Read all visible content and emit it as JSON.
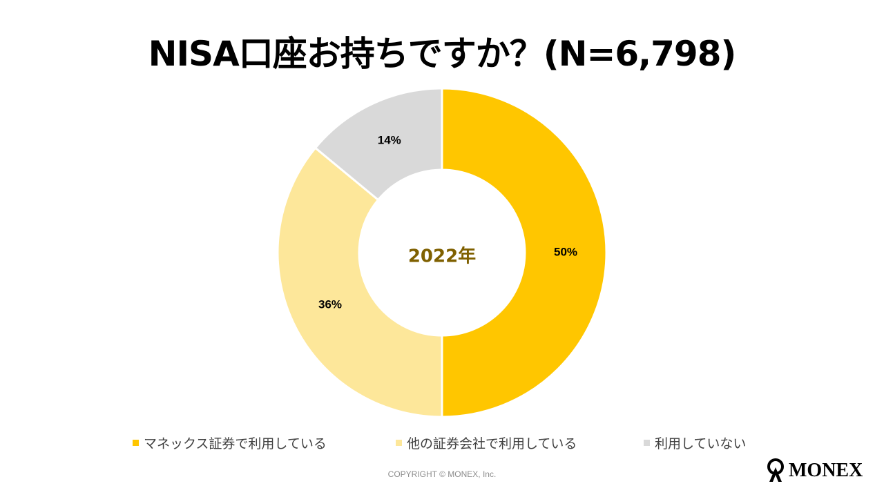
{
  "title": "NISA口座お持ちですか？(N=6,798)",
  "chart_data": {
    "type": "pie",
    "variant": "donut",
    "title": "NISA口座お持ちですか？(N=6,798)",
    "center_label": "2022年",
    "categories": [
      "マネックス証券で利用している",
      "他の証券会社で利用している",
      "利用していない"
    ],
    "values": [
      50,
      36,
      14
    ],
    "labels": [
      "50%",
      "36%",
      "14%"
    ],
    "colors": [
      "#FFC600",
      "#FDE79A",
      "#D9D9D9"
    ],
    "legend_position": "bottom"
  },
  "legend": {
    "items": [
      {
        "label": "マネックス証券で利用している",
        "color": "#FFC600"
      },
      {
        "label": "他の証券会社で利用している",
        "color": "#FDE79A"
      },
      {
        "label": "利用していない",
        "color": "#D9D9D9"
      }
    ]
  },
  "footer": {
    "copyright": "COPYRIGHT © MONEX, Inc.",
    "logo": "MONEX"
  },
  "colors": {
    "center_label": "#7F6000",
    "text": "#000000",
    "legend_text": "#404040"
  }
}
